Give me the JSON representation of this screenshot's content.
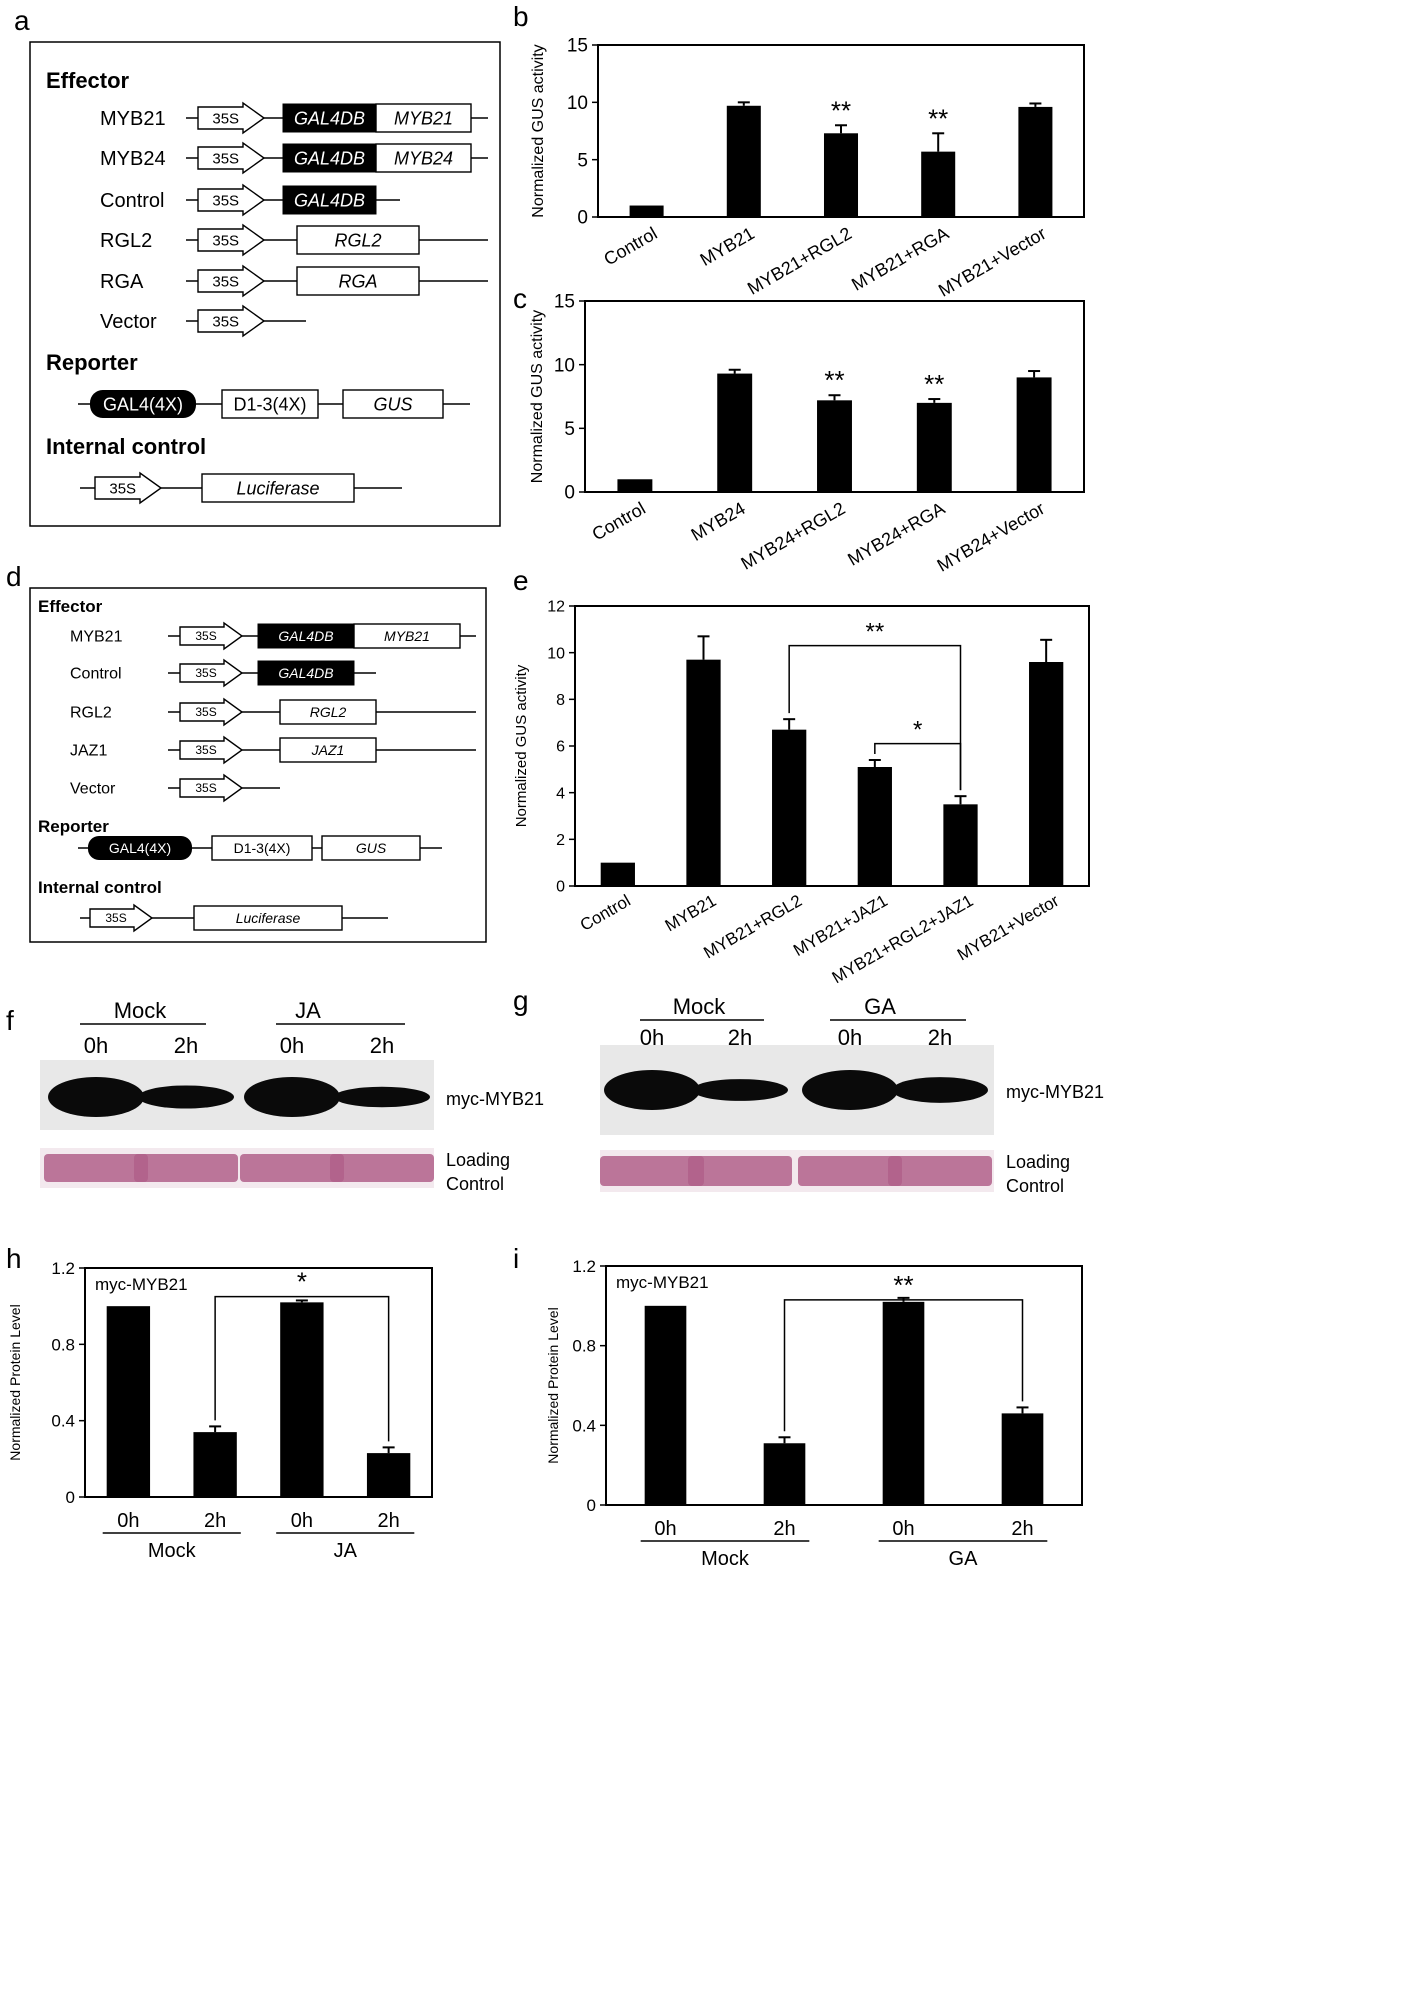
{
  "panel_letters": [
    "a",
    "b",
    "c",
    "d",
    "e",
    "f",
    "g",
    "h",
    "i"
  ],
  "construct_a": {
    "effector_title": "Effector",
    "reporter_title": "Reporter",
    "internal_title": "Internal control",
    "promoter": "35S",
    "rows": [
      {
        "label": "MYB21",
        "domain": "GAL4DB",
        "fusion": "MYB21"
      },
      {
        "label": "MYB24",
        "domain": "GAL4DB",
        "fusion": "MYB24"
      },
      {
        "label": "Control",
        "domain": "GAL4DB",
        "fusion": ""
      },
      {
        "label": "RGL2",
        "domain": "",
        "fusion": "RGL2"
      },
      {
        "label": "RGA",
        "domain": "",
        "fusion": "RGA"
      },
      {
        "label": "Vector",
        "domain": "",
        "fusion": ""
      }
    ],
    "reporter": {
      "gal4": "GAL4(4X)",
      "d13": "D1-3(4X)",
      "gus": "GUS"
    },
    "internal": {
      "promoter": "35S",
      "gene": "Luciferase"
    }
  },
  "construct_d": {
    "effector_title": "Effector",
    "reporter_title": "Reporter",
    "internal_title": "Internal control",
    "promoter": "35S",
    "rows": [
      {
        "label": "MYB21",
        "domain": "GAL4DB",
        "fusion": "MYB21"
      },
      {
        "label": "Control",
        "domain": "GAL4DB",
        "fusion": ""
      },
      {
        "label": "RGL2",
        "domain": "",
        "fusion": "RGL2"
      },
      {
        "label": "JAZ1",
        "domain": "",
        "fusion": "JAZ1"
      },
      {
        "label": "Vector",
        "domain": "",
        "fusion": ""
      }
    ],
    "reporter": {
      "gal4": "GAL4(4X)",
      "d13": "D1-3(4X)",
      "gus": "GUS"
    },
    "internal": {
      "promoter": "35S",
      "gene": "Luciferase"
    }
  },
  "blot_f": {
    "groups": [
      "Mock",
      "JA"
    ],
    "times": [
      "0h",
      "2h",
      "0h",
      "2h"
    ],
    "protein": "myc-MYB21",
    "loading": [
      "Loading",
      "Control"
    ],
    "band_intensity": [
      1.0,
      0.35,
      1.0,
      0.25
    ]
  },
  "blot_g": {
    "groups": [
      "Mock",
      "GA"
    ],
    "times": [
      "0h",
      "2h",
      "0h",
      "2h"
    ],
    "protein": "myc-MYB21",
    "loading": [
      "Loading",
      "Control"
    ],
    "band_intensity": [
      1.0,
      0.3,
      1.0,
      0.45
    ]
  },
  "chart_data": [
    {
      "id": "b",
      "type": "bar",
      "ylabel": "Normalized GUS activity",
      "ylim": [
        0,
        15
      ],
      "yticks": [
        0,
        5,
        10,
        15
      ],
      "categories": [
        "Control",
        "MYB21",
        "MYB21+RGL2",
        "MYB21+RGA",
        "MYB21+Vector"
      ],
      "values": [
        1.0,
        9.7,
        7.3,
        5.7,
        9.6
      ],
      "errors": [
        0,
        0.3,
        0.7,
        1.6,
        0.3
      ],
      "sig": [
        "",
        "",
        "**",
        "**",
        ""
      ]
    },
    {
      "id": "c",
      "type": "bar",
      "ylabel": "Normalized GUS activity",
      "ylim": [
        0,
        15
      ],
      "yticks": [
        0,
        5,
        10,
        15
      ],
      "categories": [
        "Control",
        "MYB24",
        "MYB24+RGL2",
        "MYB24+RGA",
        "MYB24+Vector"
      ],
      "values": [
        1.0,
        9.3,
        7.2,
        7.0,
        9.0
      ],
      "errors": [
        0,
        0.3,
        0.4,
        0.3,
        0.5
      ],
      "sig": [
        "",
        "",
        "**",
        "**",
        ""
      ]
    },
    {
      "id": "e",
      "type": "bar",
      "ylabel": "Normalized GUS activity",
      "ylim": [
        0,
        12
      ],
      "yticks": [
        0,
        2,
        4,
        6,
        8,
        10,
        12
      ],
      "categories": [
        "Control",
        "MYB21",
        "MYB21+RGL2",
        "MYB21+JAZ1",
        "MYB21+RGL2+JAZ1",
        "MYB21+Vector"
      ],
      "values": [
        1.0,
        9.7,
        6.7,
        5.1,
        3.5,
        9.6
      ],
      "errors": [
        0,
        1.0,
        0.45,
        0.3,
        0.35,
        0.95
      ],
      "brackets": [
        {
          "from": 2,
          "to": 4,
          "label": "**",
          "level": 10.3
        },
        {
          "from": 3,
          "to": 4,
          "label": "*",
          "level": 6.1
        }
      ]
    },
    {
      "id": "h",
      "type": "bar",
      "ylabel": "Normalized Protein Level",
      "ylim": [
        0,
        1.2
      ],
      "yticks": [
        "0",
        "0.4",
        "0.8",
        "1.2"
      ],
      "categories": [
        "0h",
        "2h",
        "0h",
        "2h"
      ],
      "groups": [
        "Mock",
        "JA"
      ],
      "annotation": "myc-MYB21",
      "values": [
        1.0,
        0.34,
        1.02,
        0.23
      ],
      "errors": [
        0,
        0.03,
        0.01,
        0.03
      ],
      "brackets": [
        {
          "from": 1,
          "to": 3,
          "label": "*",
          "level": 1.05
        }
      ]
    },
    {
      "id": "i",
      "type": "bar",
      "ylabel": "Normalized Protein Level",
      "ylim": [
        0,
        1.2
      ],
      "yticks": [
        "0",
        "0.4",
        "0.8",
        "1.2"
      ],
      "categories": [
        "0h",
        "2h",
        "0h",
        "2h"
      ],
      "groups": [
        "Mock",
        "GA"
      ],
      "annotation": "myc-MYB21",
      "values": [
        1.0,
        0.31,
        1.02,
        0.46
      ],
      "errors": [
        0,
        0.03,
        0.02,
        0.03
      ],
      "brackets": [
        {
          "from": 1,
          "to": 3,
          "label": "**",
          "level": 1.03
        }
      ]
    }
  ]
}
